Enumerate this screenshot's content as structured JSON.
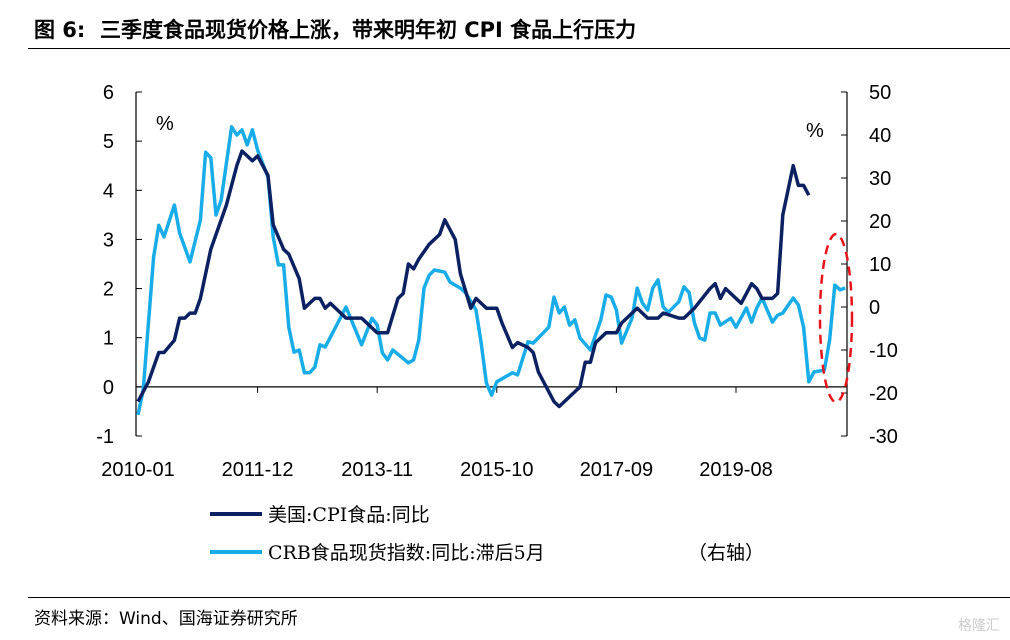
{
  "title": "图 6:  三季度食品现货价格上涨，带来明年初 CPI 食品上行压力",
  "source": "资料来源：Wind、国海证券研究所",
  "watermark": "格隆汇",
  "chart_data": {
    "type": "line",
    "title": "图 6:  三季度食品现货价格上涨，带来明年初 CPI 食品上行压力",
    "left_axis": {
      "unit_label": "%",
      "ylim": [
        -1,
        6
      ],
      "ticks": [
        -1,
        0,
        1,
        2,
        3,
        4,
        5,
        6
      ]
    },
    "right_axis": {
      "unit_label": "%",
      "ylim": [
        -30,
        50
      ],
      "ticks": [
        -30,
        -20,
        -10,
        0,
        10,
        20,
        30,
        40,
        50
      ]
    },
    "x_ticks": [
      "2010-01",
      "2011-12",
      "2013-11",
      "2015-10",
      "2017-09",
      "2019-08"
    ],
    "legend_position": "bottom",
    "right_axis_note": "（右轴）",
    "annotation": "red dashed ellipse around latest CRB rebound",
    "colors": {
      "us_cpi": "#0b2161",
      "crb": "#18ade8",
      "highlight": "#e8141b"
    },
    "series": [
      {
        "name": "美国:CPI食品:同比",
        "axis": "left",
        "points": [
          [
            "2010-01",
            -0.3
          ],
          [
            "2010-03",
            0.1
          ],
          [
            "2010-05",
            0.7
          ],
          [
            "2010-06",
            0.7
          ],
          [
            "2010-08",
            0.95
          ],
          [
            "2010-09",
            1.4
          ],
          [
            "2010-10",
            1.4
          ],
          [
            "2010-11",
            1.5
          ],
          [
            "2010-12",
            1.5
          ],
          [
            "2011-01",
            1.8
          ],
          [
            "2011-03",
            2.8
          ],
          [
            "2011-06",
            3.7
          ],
          [
            "2011-08",
            4.5
          ],
          [
            "2011-09",
            4.8
          ],
          [
            "2011-11",
            4.6
          ],
          [
            "2011-12",
            4.7
          ],
          [
            "2012-02",
            4.3
          ],
          [
            "2012-03",
            3.3
          ],
          [
            "2012-04",
            3.05
          ],
          [
            "2012-05",
            2.8
          ],
          [
            "2012-06",
            2.7
          ],
          [
            "2012-08",
            2.2
          ],
          [
            "2012-09",
            1.6
          ],
          [
            "2012-11",
            1.8
          ],
          [
            "2012-12",
            1.8
          ],
          [
            "2013-01",
            1.6
          ],
          [
            "2013-02",
            1.7
          ],
          [
            "2013-05",
            1.4
          ],
          [
            "2013-08",
            1.4
          ],
          [
            "2013-11",
            1.1
          ],
          [
            "2014-01",
            1.1
          ],
          [
            "2014-03",
            1.8
          ],
          [
            "2014-04",
            1.9
          ],
          [
            "2014-05",
            2.5
          ],
          [
            "2014-06",
            2.4
          ],
          [
            "2014-07",
            2.6
          ],
          [
            "2014-09",
            2.9
          ],
          [
            "2014-11",
            3.1
          ],
          [
            "2014-12",
            3.4
          ],
          [
            "2015-02",
            3.0
          ],
          [
            "2015-03",
            2.3
          ],
          [
            "2015-05",
            1.6
          ],
          [
            "2015-06",
            1.8
          ],
          [
            "2015-08",
            1.6
          ],
          [
            "2015-10",
            1.6
          ],
          [
            "2015-11",
            1.3
          ],
          [
            "2016-01",
            0.8
          ],
          [
            "2016-02",
            0.9
          ],
          [
            "2016-04",
            0.8
          ],
          [
            "2016-05",
            0.7
          ],
          [
            "2016-06",
            0.3
          ],
          [
            "2016-07",
            0.1
          ],
          [
            "2016-09",
            -0.3
          ],
          [
            "2016-10",
            -0.4
          ],
          [
            "2017-02",
            0.0
          ],
          [
            "2017-03",
            0.5
          ],
          [
            "2017-04",
            0.5
          ],
          [
            "2017-05",
            0.9
          ],
          [
            "2017-07",
            1.1
          ],
          [
            "2017-09",
            1.1
          ],
          [
            "2017-10",
            1.3
          ],
          [
            "2017-11",
            1.4
          ],
          [
            "2018-01",
            1.6
          ],
          [
            "2018-03",
            1.4
          ],
          [
            "2018-05",
            1.4
          ],
          [
            "2018-06",
            1.5
          ],
          [
            "2018-09",
            1.4
          ],
          [
            "2018-10",
            1.4
          ],
          [
            "2018-12",
            1.6
          ],
          [
            "2019-03",
            2.0
          ],
          [
            "2019-04",
            2.1
          ],
          [
            "2019-05",
            1.8
          ],
          [
            "2019-06",
            2.0
          ],
          [
            "2019-09",
            1.7
          ],
          [
            "2019-11",
            2.1
          ],
          [
            "2019-12",
            2.0
          ],
          [
            "2020-01",
            1.8
          ],
          [
            "2020-03",
            1.8
          ],
          [
            "2020-04",
            1.9
          ],
          [
            "2020-05",
            3.5
          ],
          [
            "2020-07",
            4.5
          ],
          [
            "2020-08",
            4.1
          ],
          [
            "2020-09",
            4.1
          ],
          [
            "2020-10",
            3.9
          ]
        ]
      },
      {
        "name": "CRB食品现货指数:同比:滞后5月",
        "axis": "right",
        "points": [
          [
            "2010-01",
            -25.1
          ],
          [
            "2010-02",
            -19.3
          ],
          [
            "2010-04",
            11.6
          ],
          [
            "2010-05",
            19
          ],
          [
            "2010-06",
            16.3
          ],
          [
            "2010-08",
            23.7
          ],
          [
            "2010-09",
            17.2
          ],
          [
            "2010-11",
            10.5
          ],
          [
            "2011-01",
            20.2
          ],
          [
            "2011-02",
            36
          ],
          [
            "2011-03",
            34.7
          ],
          [
            "2011-04",
            21.4
          ],
          [
            "2011-05",
            24.9
          ],
          [
            "2011-07",
            41.9
          ],
          [
            "2011-08",
            40
          ],
          [
            "2011-09",
            41.2
          ],
          [
            "2011-10",
            37.7
          ],
          [
            "2011-11",
            41.2
          ],
          [
            "2011-12",
            36.5
          ],
          [
            "2012-02",
            30.2
          ],
          [
            "2012-03",
            16.3
          ],
          [
            "2012-04",
            9.8
          ],
          [
            "2012-05",
            9.8
          ],
          [
            "2012-06",
            -4.7
          ],
          [
            "2012-07",
            -10.5
          ],
          [
            "2012-08",
            -10
          ],
          [
            "2012-09",
            -15.3
          ],
          [
            "2012-10",
            -15.3
          ],
          [
            "2012-11",
            -14
          ],
          [
            "2012-12",
            -8.8
          ],
          [
            "2013-01",
            -9.3
          ],
          [
            "2013-03",
            -4.7
          ],
          [
            "2013-05",
            0
          ],
          [
            "2013-08",
            -8.8
          ],
          [
            "2013-10",
            -2.6
          ],
          [
            "2013-11",
            -4.2
          ],
          [
            "2013-12",
            -10.7
          ],
          [
            "2014-01",
            -12.3
          ],
          [
            "2014-02",
            -10
          ],
          [
            "2014-05",
            -13
          ],
          [
            "2014-06",
            -12.3
          ],
          [
            "2014-07",
            -7.7
          ],
          [
            "2014-08",
            4.4
          ],
          [
            "2014-09",
            7.4
          ],
          [
            "2014-10",
            8.6
          ],
          [
            "2014-12",
            8.1
          ],
          [
            "2015-01",
            5.8
          ],
          [
            "2015-03",
            4.4
          ],
          [
            "2015-04",
            3.3
          ],
          [
            "2015-06",
            -0.7
          ],
          [
            "2015-07",
            -8.4
          ],
          [
            "2015-08",
            -17.7
          ],
          [
            "2015-09",
            -20.5
          ],
          [
            "2015-10",
            -17.4
          ],
          [
            "2016-01",
            -15.3
          ],
          [
            "2016-02",
            -15.8
          ],
          [
            "2016-04",
            -8.1
          ],
          [
            "2016-05",
            -8.4
          ],
          [
            "2016-08",
            -4.7
          ],
          [
            "2016-09",
            2.3
          ],
          [
            "2016-10",
            -1.4
          ],
          [
            "2016-11",
            0
          ],
          [
            "2016-12",
            -4.2
          ],
          [
            "2017-01",
            -3
          ],
          [
            "2017-02",
            -7.2
          ],
          [
            "2017-04",
            -10
          ],
          [
            "2017-06",
            -3
          ],
          [
            "2017-07",
            2.8
          ],
          [
            "2017-08",
            2.3
          ],
          [
            "2017-09",
            -0.7
          ],
          [
            "2017-10",
            -8.4
          ],
          [
            "2017-12",
            -2.6
          ],
          [
            "2018-01",
            4.4
          ],
          [
            "2018-02",
            0.9
          ],
          [
            "2018-03",
            -0.7
          ],
          [
            "2018-04",
            4.4
          ],
          [
            "2018-05",
            6.3
          ],
          [
            "2018-06",
            0
          ],
          [
            "2018-07",
            -1.2
          ],
          [
            "2018-09",
            1.2
          ],
          [
            "2018-10",
            4.7
          ],
          [
            "2018-11",
            3.3
          ],
          [
            "2018-12",
            -3.7
          ],
          [
            "2019-01",
            -7.2
          ],
          [
            "2019-02",
            -7.7
          ],
          [
            "2019-03",
            -1.4
          ],
          [
            "2019-04",
            -1.4
          ],
          [
            "2019-05",
            -4.2
          ],
          [
            "2019-07",
            -2.6
          ],
          [
            "2019-08",
            -4.7
          ],
          [
            "2019-10",
            -0.2
          ],
          [
            "2019-11",
            -3.5
          ],
          [
            "2019-12",
            -0.2
          ],
          [
            "2020-01",
            2.1
          ],
          [
            "2020-03",
            -3.5
          ],
          [
            "2020-04",
            -1.9
          ],
          [
            "2020-05",
            -1.4
          ],
          [
            "2020-07",
            2.1
          ],
          [
            "2020-08",
            0.5
          ],
          [
            "2020-09",
            -4.7
          ],
          [
            "2020-10",
            -17.4
          ],
          [
            "2020-11",
            -15.1
          ],
          [
            "2021-01",
            -14.7
          ],
          [
            "2021-02",
            -7.7
          ],
          [
            "2021-03",
            5.1
          ],
          [
            "2021-04",
            4
          ],
          [
            "2021-05",
            4.4
          ]
        ]
      }
    ]
  }
}
